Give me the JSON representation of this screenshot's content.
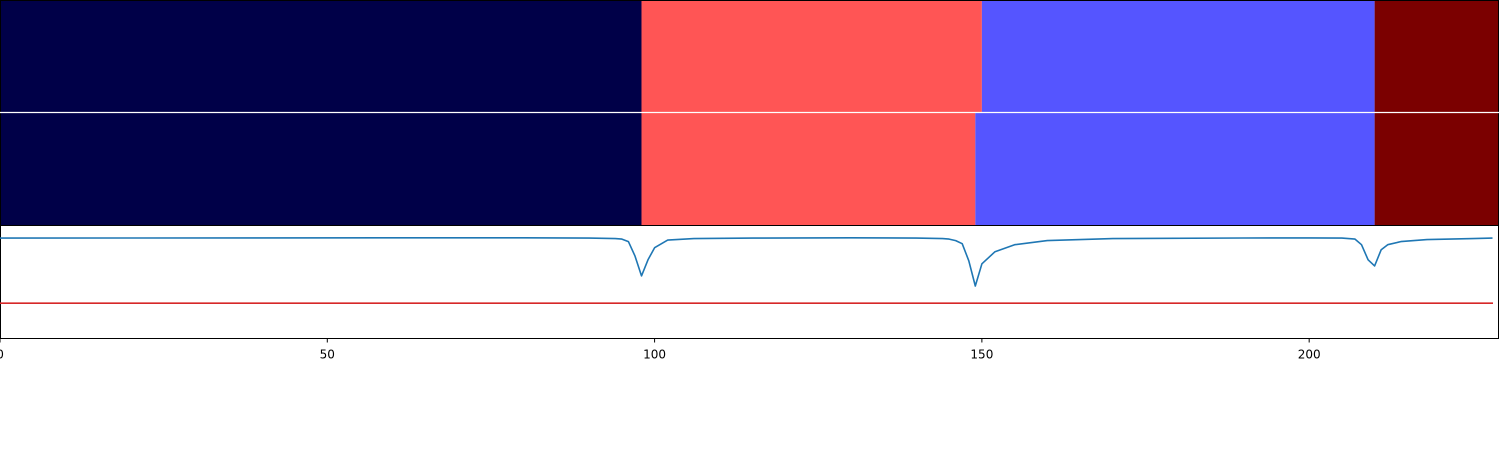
{
  "chart_data": [
    {
      "type": "heatmap",
      "panel": "top-segmentation",
      "segments": [
        {
          "start": 0,
          "end": 98,
          "color": "#000048"
        },
        {
          "start": 98,
          "end": 150,
          "color": "#ff5555"
        },
        {
          "start": 150,
          "end": 210,
          "color": "#5555ff"
        },
        {
          "start": 210,
          "end": 229,
          "color": "#7b0000"
        }
      ]
    },
    {
      "type": "heatmap",
      "panel": "middle-segmentation",
      "segments": [
        {
          "start": 0,
          "end": 98,
          "color": "#000048"
        },
        {
          "start": 98,
          "end": 149,
          "color": "#ff5555"
        },
        {
          "start": 149,
          "end": 210,
          "color": "#5555ff"
        },
        {
          "start": 210,
          "end": 229,
          "color": "#7b0000"
        }
      ]
    },
    {
      "type": "line",
      "panel": "bottom-signal",
      "xlim": [
        0,
        229
      ],
      "ylim": [
        0,
        1.12
      ],
      "grid": false,
      "x_ticks": [
        0,
        50,
        100,
        150,
        200
      ],
      "tick_labels": [
        "0",
        "50",
        "100",
        "150",
        "200"
      ],
      "threshold": {
        "value": 0.35,
        "color": "#d62728"
      },
      "series": [
        {
          "color": "#1f77b4",
          "x": [
            0,
            20,
            40,
            60,
            80,
            90,
            94,
            95,
            96,
            97,
            98,
            99,
            100,
            102,
            106,
            115,
            130,
            140,
            144,
            145,
            146,
            147,
            148,
            149,
            150,
            152,
            155,
            160,
            170,
            190,
            200,
            205,
            207,
            208,
            209,
            210,
            211,
            212,
            214,
            218,
            225,
            228
          ],
          "y": [
            0.995,
            0.996,
            0.997,
            0.998,
            0.998,
            0.995,
            0.99,
            0.985,
            0.96,
            0.82,
            0.62,
            0.78,
            0.9,
            0.975,
            0.99,
            0.995,
            0.998,
            0.995,
            0.99,
            0.985,
            0.97,
            0.94,
            0.77,
            0.52,
            0.74,
            0.86,
            0.93,
            0.97,
            0.99,
            0.996,
            0.997,
            0.995,
            0.985,
            0.93,
            0.78,
            0.72,
            0.88,
            0.93,
            0.96,
            0.98,
            0.99,
            0.995
          ]
        }
      ]
    }
  ]
}
